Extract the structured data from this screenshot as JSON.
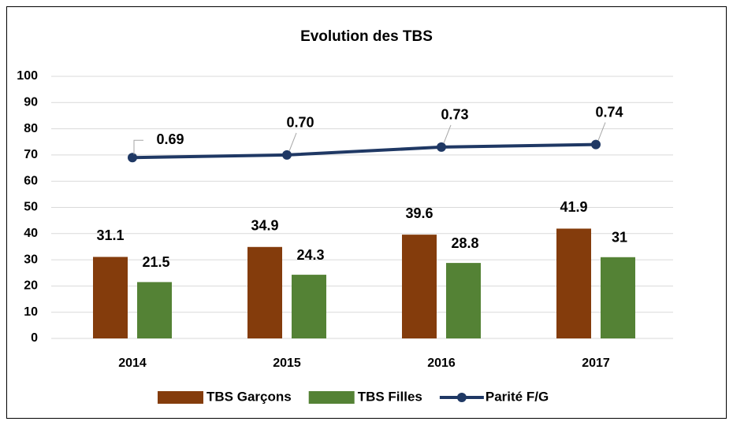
{
  "chart_data": {
    "type": "bar",
    "title": "Evolution des TBS",
    "categories": [
      "2014",
      "2015",
      "2016",
      "2017"
    ],
    "series": [
      {
        "name": "TBS Garçons",
        "type": "bar",
        "color": "#843c0c",
        "values": [
          31.1,
          34.9,
          39.6,
          41.9
        ]
      },
      {
        "name": "TBS Filles",
        "type": "bar",
        "color": "#548235",
        "values": [
          21.5,
          24.3,
          28.8,
          31
        ]
      },
      {
        "name": "Parité F/G",
        "type": "line",
        "axis": "y2",
        "color": "#1f3864",
        "values": [
          0.69,
          0.7,
          0.73,
          0.74
        ],
        "value_labels": [
          "0.69",
          "0.70",
          "0.73",
          "0.74"
        ]
      }
    ],
    "ylim": [
      0,
      100
    ],
    "yticks": [
      0,
      10,
      20,
      30,
      40,
      50,
      60,
      70,
      80,
      90,
      100
    ],
    "y2lim": [
      0,
      1
    ],
    "grid": true,
    "legend": "bottom"
  }
}
